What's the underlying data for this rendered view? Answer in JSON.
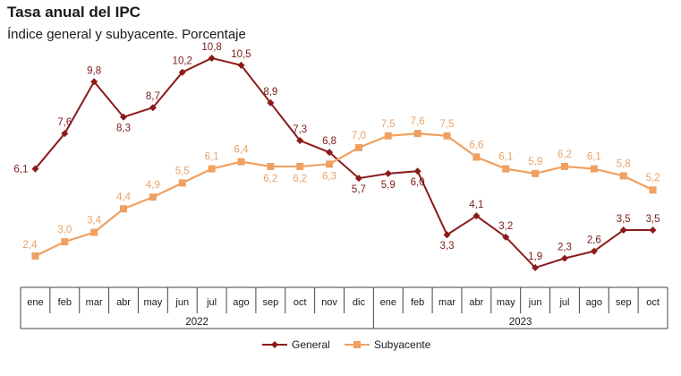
{
  "header": {
    "title": "Tasa anual del IPC",
    "subtitle": "Índice general y subyacente. Porcentaje"
  },
  "colors": {
    "general": "#8b1a1a",
    "subyacente": "#f0a060"
  },
  "chart_data": {
    "type": "line",
    "title": "Tasa anual del IPC",
    "subtitle": "Índice general y subyacente. Porcentaje",
    "categories": [
      "ene",
      "feb",
      "mar",
      "abr",
      "may",
      "jun",
      "jul",
      "ago",
      "sep",
      "oct",
      "nov",
      "dic",
      "ene",
      "feb",
      "mar",
      "abr",
      "may",
      "jun",
      "jul",
      "ago",
      "sep",
      "oct"
    ],
    "years": [
      {
        "label": "2022",
        "start": 0,
        "end": 11
      },
      {
        "label": "2023",
        "start": 12,
        "end": 21
      }
    ],
    "series": [
      {
        "name": "General",
        "color": "#8b1a1a",
        "marker": "diamond",
        "values": [
          6.1,
          7.6,
          9.8,
          8.3,
          8.7,
          10.2,
          10.8,
          10.5,
          8.9,
          7.3,
          6.8,
          5.7,
          5.9,
          6.0,
          3.3,
          4.1,
          3.2,
          1.9,
          2.3,
          2.6,
          3.5,
          3.5
        ],
        "labels": [
          "6,1",
          "7,6",
          "9,8",
          "8,3",
          "8,7",
          "10,2",
          "10,8",
          "10,5",
          "8,9",
          "7,3",
          "6,8",
          "5,7",
          "5,9",
          "6,0",
          "3,3",
          "4,1",
          "3,2",
          "1,9",
          "2,3",
          "2,6",
          "3,5",
          "3,5"
        ]
      },
      {
        "name": "Subyacente",
        "color": "#f0a060",
        "marker": "square",
        "values": [
          2.4,
          3.0,
          3.4,
          4.4,
          4.9,
          5.5,
          6.1,
          6.4,
          6.2,
          6.2,
          6.3,
          7.0,
          7.5,
          7.6,
          7.5,
          6.6,
          6.1,
          5.9,
          6.2,
          6.1,
          5.8,
          5.2
        ],
        "labels": [
          "2,4",
          "3,0",
          "3,4",
          "4,4",
          "4,9",
          "5,5",
          "6,1",
          "6,4",
          "6,2",
          "6,2",
          "6,3",
          "7,0",
          "7,5",
          "7,6",
          "7,5",
          "6,6",
          "6,1",
          "5,9",
          "6,2",
          "6,1",
          "5,8",
          "5,2"
        ]
      }
    ],
    "ylim": [
      0,
      12
    ],
    "grid": false,
    "legend_position": "bottom-center"
  }
}
